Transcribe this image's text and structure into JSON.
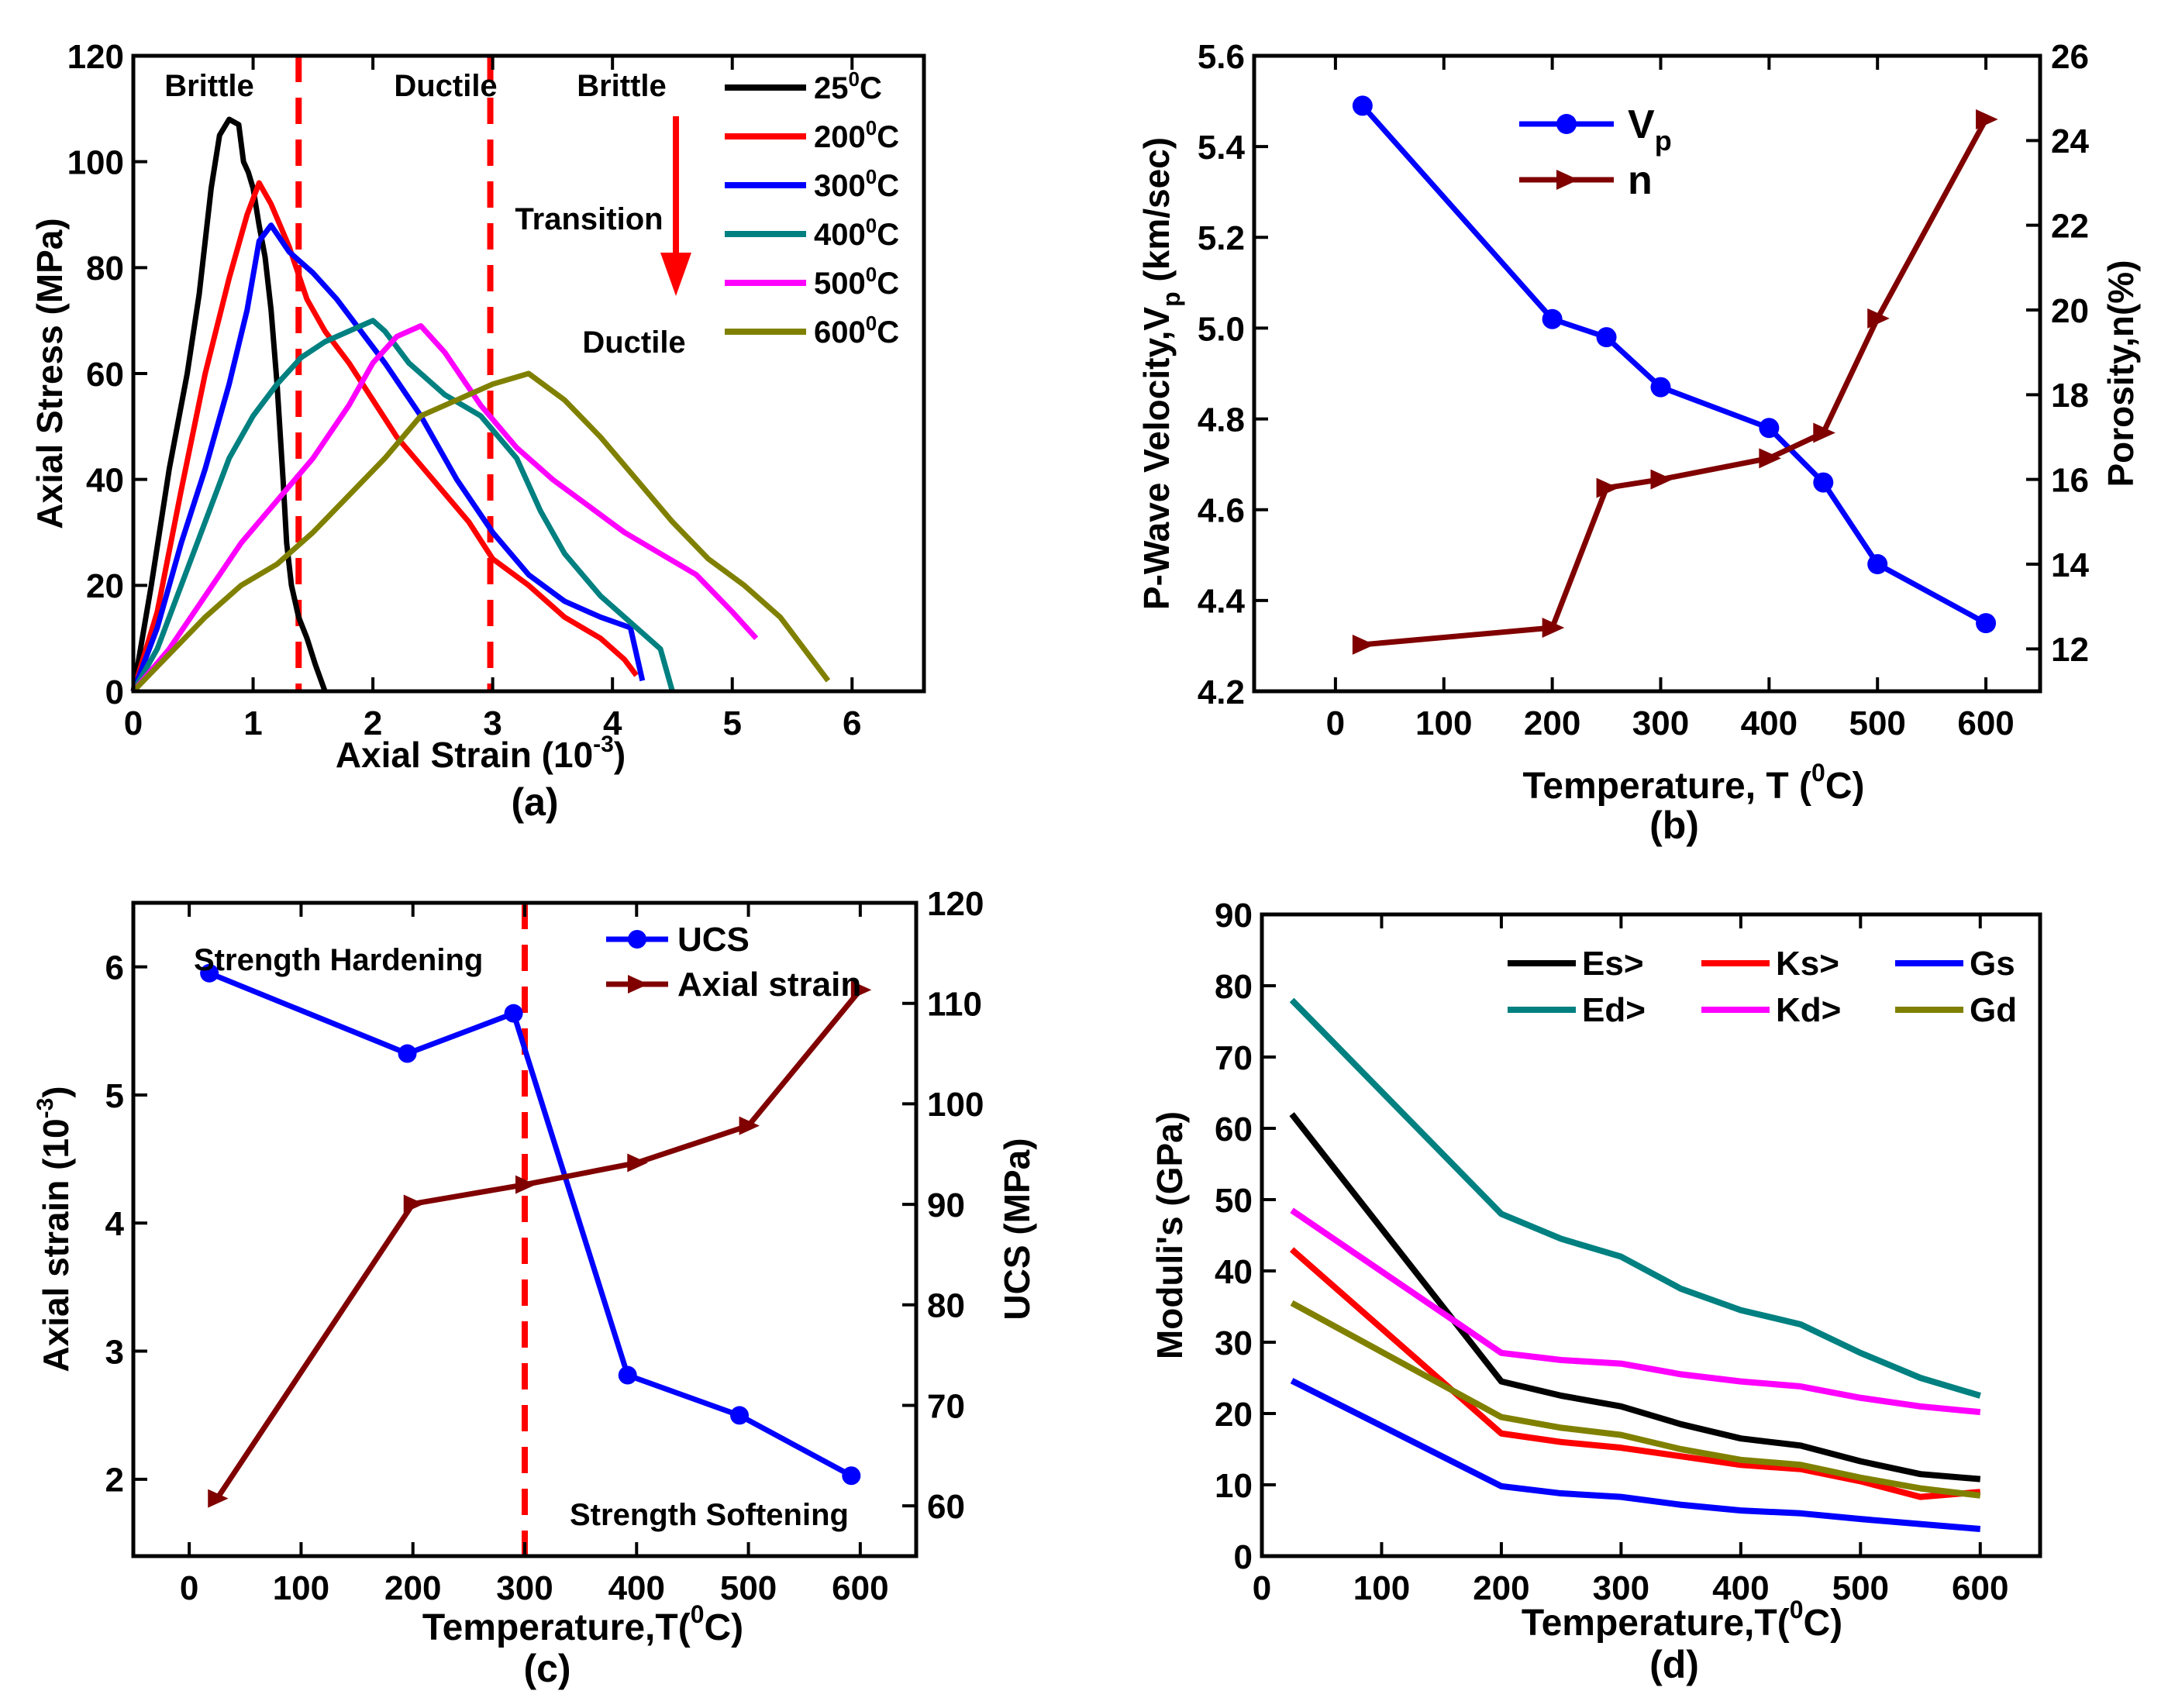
{
  "chart_data": [
    {
      "id": "a",
      "type": "line",
      "caption": "(a)",
      "xlabel": "Axial Strain (10",
      "xlabel_sup": "-3",
      "xlabel_end": ")",
      "ylabel": "Axial Stress (MPa)",
      "xlim": [
        0,
        6.6
      ],
      "ylim": [
        0,
        120
      ],
      "xticks": [
        0,
        1,
        2,
        3,
        4,
        5,
        6
      ],
      "yticks": [
        0,
        20,
        40,
        60,
        80,
        100,
        120
      ],
      "region_labels": [
        "Brittle",
        "Ductile",
        "Brittle"
      ],
      "transition_label": "Transition",
      "ductile_label": "Ductile",
      "divider_x": [
        1.38,
        2.98
      ],
      "series": [
        {
          "name": "25",
          "unit": "C",
          "deg": "0",
          "color": "#000000",
          "x": [
            0,
            0.15,
            0.3,
            0.45,
            0.55,
            0.65,
            0.72,
            0.8,
            0.88,
            0.92,
            0.96,
            1.0,
            1.05,
            1.1,
            1.15,
            1.2,
            1.25,
            1.28,
            1.32,
            1.38,
            1.45,
            1.52,
            1.6
          ],
          "y": [
            0,
            20,
            42,
            60,
            75,
            95,
            105,
            108,
            107,
            100,
            98,
            95,
            88,
            82,
            72,
            58,
            40,
            28,
            20,
            14,
            10,
            5,
            0
          ]
        },
        {
          "name": "200",
          "unit": "C",
          "deg": "0",
          "color": "#ff0000",
          "x": [
            0,
            0.2,
            0.4,
            0.6,
            0.8,
            0.95,
            1.05,
            1.15,
            1.3,
            1.45,
            1.6,
            1.8,
            2.0,
            2.2,
            2.5,
            2.8,
            3.0,
            3.3,
            3.6,
            3.9,
            4.1,
            4.2
          ],
          "y": [
            0,
            15,
            38,
            60,
            78,
            90,
            96,
            92,
            84,
            74,
            68,
            62,
            55,
            48,
            40,
            32,
            25,
            20,
            14,
            10,
            6,
            3
          ]
        },
        {
          "name": "300",
          "unit": "C",
          "deg": "0",
          "color": "#0000ff",
          "x": [
            0,
            0.2,
            0.4,
            0.6,
            0.8,
            0.95,
            1.05,
            1.15,
            1.3,
            1.5,
            1.7,
            1.9,
            2.1,
            2.4,
            2.7,
            3.0,
            3.3,
            3.6,
            3.9,
            4.15,
            4.25
          ],
          "y": [
            0,
            12,
            28,
            42,
            58,
            72,
            85,
            88,
            83,
            79,
            74,
            68,
            62,
            52,
            40,
            30,
            22,
            17,
            14,
            12,
            2
          ]
        },
        {
          "name": "400",
          "unit": "C",
          "deg": "0",
          "color": "#008080",
          "x": [
            0,
            0.2,
            0.4,
            0.6,
            0.8,
            1.0,
            1.2,
            1.4,
            1.6,
            1.8,
            2.0,
            2.1,
            2.3,
            2.6,
            2.9,
            3.2,
            3.4,
            3.6,
            3.9,
            4.2,
            4.4,
            4.5
          ],
          "y": [
            0,
            8,
            20,
            32,
            44,
            52,
            58,
            63,
            66,
            68,
            70,
            68,
            62,
            56,
            52,
            44,
            34,
            26,
            18,
            12,
            8,
            0
          ]
        },
        {
          "name": "500",
          "unit": "C",
          "deg": "0",
          "color": "#ff00ff",
          "x": [
            0,
            0.3,
            0.6,
            0.9,
            1.2,
            1.5,
            1.8,
            2.0,
            2.2,
            2.4,
            2.6,
            2.9,
            3.2,
            3.5,
            3.8,
            4.1,
            4.4,
            4.7,
            5.0,
            5.2
          ],
          "y": [
            0,
            8,
            18,
            28,
            36,
            44,
            54,
            62,
            67,
            69,
            64,
            54,
            46,
            40,
            35,
            30,
            26,
            22,
            15,
            10
          ]
        },
        {
          "name": "600",
          "unit": "C",
          "deg": "0",
          "color": "#808000",
          "x": [
            0,
            0.3,
            0.6,
            0.9,
            1.2,
            1.5,
            1.8,
            2.1,
            2.4,
            2.7,
            3.0,
            3.3,
            3.6,
            3.9,
            4.2,
            4.5,
            4.8,
            5.1,
            5.4,
            5.6,
            5.8
          ],
          "y": [
            0,
            7,
            14,
            20,
            24,
            30,
            37,
            44,
            52,
            55,
            58,
            60,
            55,
            48,
            40,
            32,
            25,
            20,
            14,
            8,
            2
          ]
        }
      ]
    },
    {
      "id": "b",
      "type": "line",
      "caption": "(b)",
      "xlabel": "Temperature, T (",
      "xlabel_sup": "0",
      "xlabel_end": "C)",
      "ylabel": "P-Wave Velocity,V",
      "ylabel_sub": "p",
      "ylabel_end": " (km/sec)",
      "y2label": "Porosity,n(%)",
      "xlim": [
        -75,
        650
      ],
      "ylim": [
        4.2,
        5.6
      ],
      "y2lim": [
        11,
        26
      ],
      "xticks": [
        0,
        100,
        200,
        300,
        400,
        500,
        600
      ],
      "yticks": [
        "4.2",
        "4.4",
        "4.6",
        "4.8",
        "5.0",
        "5.2",
        "5.4",
        "5.6"
      ],
      "y2ticks": [
        12,
        14,
        16,
        18,
        20,
        22,
        24,
        26
      ],
      "series": [
        {
          "name": "V",
          "sub": "p",
          "color": "#0000ff",
          "marker": "circle",
          "axis": "left",
          "x": [
            25,
            200,
            250,
            300,
            400,
            450,
            500,
            600
          ],
          "y": [
            5.49,
            5.02,
            4.98,
            4.87,
            4.78,
            4.66,
            4.48,
            4.35
          ]
        },
        {
          "name": "n",
          "sub": "",
          "color": "#800000",
          "marker": "triangle",
          "axis": "right",
          "x": [
            25,
            200,
            250,
            300,
            400,
            450,
            500,
            600
          ],
          "y": [
            12.1,
            12.5,
            15.8,
            16.0,
            16.5,
            17.1,
            19.8,
            24.5
          ]
        }
      ]
    },
    {
      "id": "c",
      "type": "line",
      "caption": "(c)",
      "xlabel": "Temperature,T(",
      "xlabel_sup": "0",
      "xlabel_end": "C)",
      "ylabel": "Axial strain (10",
      "ylabel_sup": "-3",
      "ylabel_end": ")",
      "y2label": "UCS (MPa)",
      "xlim": [
        -50,
        650
      ],
      "ylim": [
        1.4,
        6.5
      ],
      "y2lim": [
        55,
        120
      ],
      "xticks": [
        0,
        100,
        200,
        300,
        400,
        500,
        600
      ],
      "yticks": [
        2,
        3,
        4,
        5,
        6
      ],
      "y2ticks": [
        60,
        70,
        80,
        90,
        100,
        110,
        120
      ],
      "hardening_label": "Strength Hardening",
      "softening_label": "Strength Softening",
      "divider_x": [
        300
      ],
      "series": [
        {
          "name": "UCS",
          "color": "#0000ff",
          "marker": "circle",
          "axis": "right",
          "x": [
            18,
            195,
            290,
            392,
            492,
            592
          ],
          "y": [
            113,
            105,
            109,
            73,
            69,
            63
          ]
        },
        {
          "name": "Axial strain",
          "color": "#800000",
          "marker": "triangle",
          "axis": "left",
          "x": [
            25,
            200,
            300,
            400,
            500,
            600
          ],
          "y": [
            1.85,
            4.15,
            4.3,
            4.47,
            4.76,
            5.82
          ]
        }
      ]
    },
    {
      "id": "d",
      "type": "line",
      "caption": "(d)",
      "xlabel": "Temperature,T(",
      "xlabel_sup": "0",
      "xlabel_end": "C)",
      "ylabel": "Moduli's (GPa)",
      "xlim": [
        0,
        650
      ],
      "ylim": [
        0,
        90
      ],
      "xticks": [
        0,
        100,
        200,
        300,
        400,
        500,
        600
      ],
      "yticks": [
        0,
        10,
        20,
        30,
        40,
        50,
        60,
        70,
        80,
        90
      ],
      "series": [
        {
          "name": "Es>",
          "color": "#000000",
          "x": [
            25,
            200,
            250,
            300,
            350,
            400,
            450,
            500,
            550,
            600
          ],
          "y": [
            62,
            24.5,
            22.5,
            21,
            18.5,
            16.5,
            15.5,
            13.3,
            11.5,
            10.8
          ]
        },
        {
          "name": "Ks>",
          "color": "#ff0000",
          "x": [
            25,
            200,
            250,
            300,
            350,
            400,
            450,
            500,
            550,
            600
          ],
          "y": [
            43,
            17.2,
            16,
            15.2,
            14,
            12.8,
            12.2,
            10.5,
            8.3,
            9
          ]
        },
        {
          "name": "Gs",
          "color": "#0000ff",
          "x": [
            25,
            200,
            250,
            300,
            350,
            400,
            450,
            500,
            550,
            600
          ],
          "y": [
            24.6,
            9.8,
            8.8,
            8.3,
            7.2,
            6.4,
            6,
            5.2,
            4.5,
            3.8
          ]
        },
        {
          "name": "Ed>",
          "color": "#008080",
          "x": [
            25,
            200,
            250,
            300,
            350,
            400,
            450,
            500,
            550,
            600
          ],
          "y": [
            78,
            48,
            44.5,
            42,
            37.5,
            34.5,
            32.5,
            28.5,
            25,
            22.5
          ]
        },
        {
          "name": "Kd>",
          "color": "#ff00ff",
          "x": [
            25,
            200,
            250,
            300,
            350,
            400,
            450,
            500,
            550,
            600
          ],
          "y": [
            48.5,
            28.5,
            27.5,
            27,
            25.5,
            24.5,
            23.8,
            22.2,
            21,
            20.2
          ]
        },
        {
          "name": "Gd",
          "color": "#808000",
          "x": [
            25,
            200,
            250,
            300,
            350,
            400,
            450,
            500,
            550,
            600
          ],
          "y": [
            35.5,
            19.5,
            18,
            17,
            15,
            13.5,
            12.8,
            11,
            9.5,
            8.5
          ]
        }
      ]
    }
  ]
}
